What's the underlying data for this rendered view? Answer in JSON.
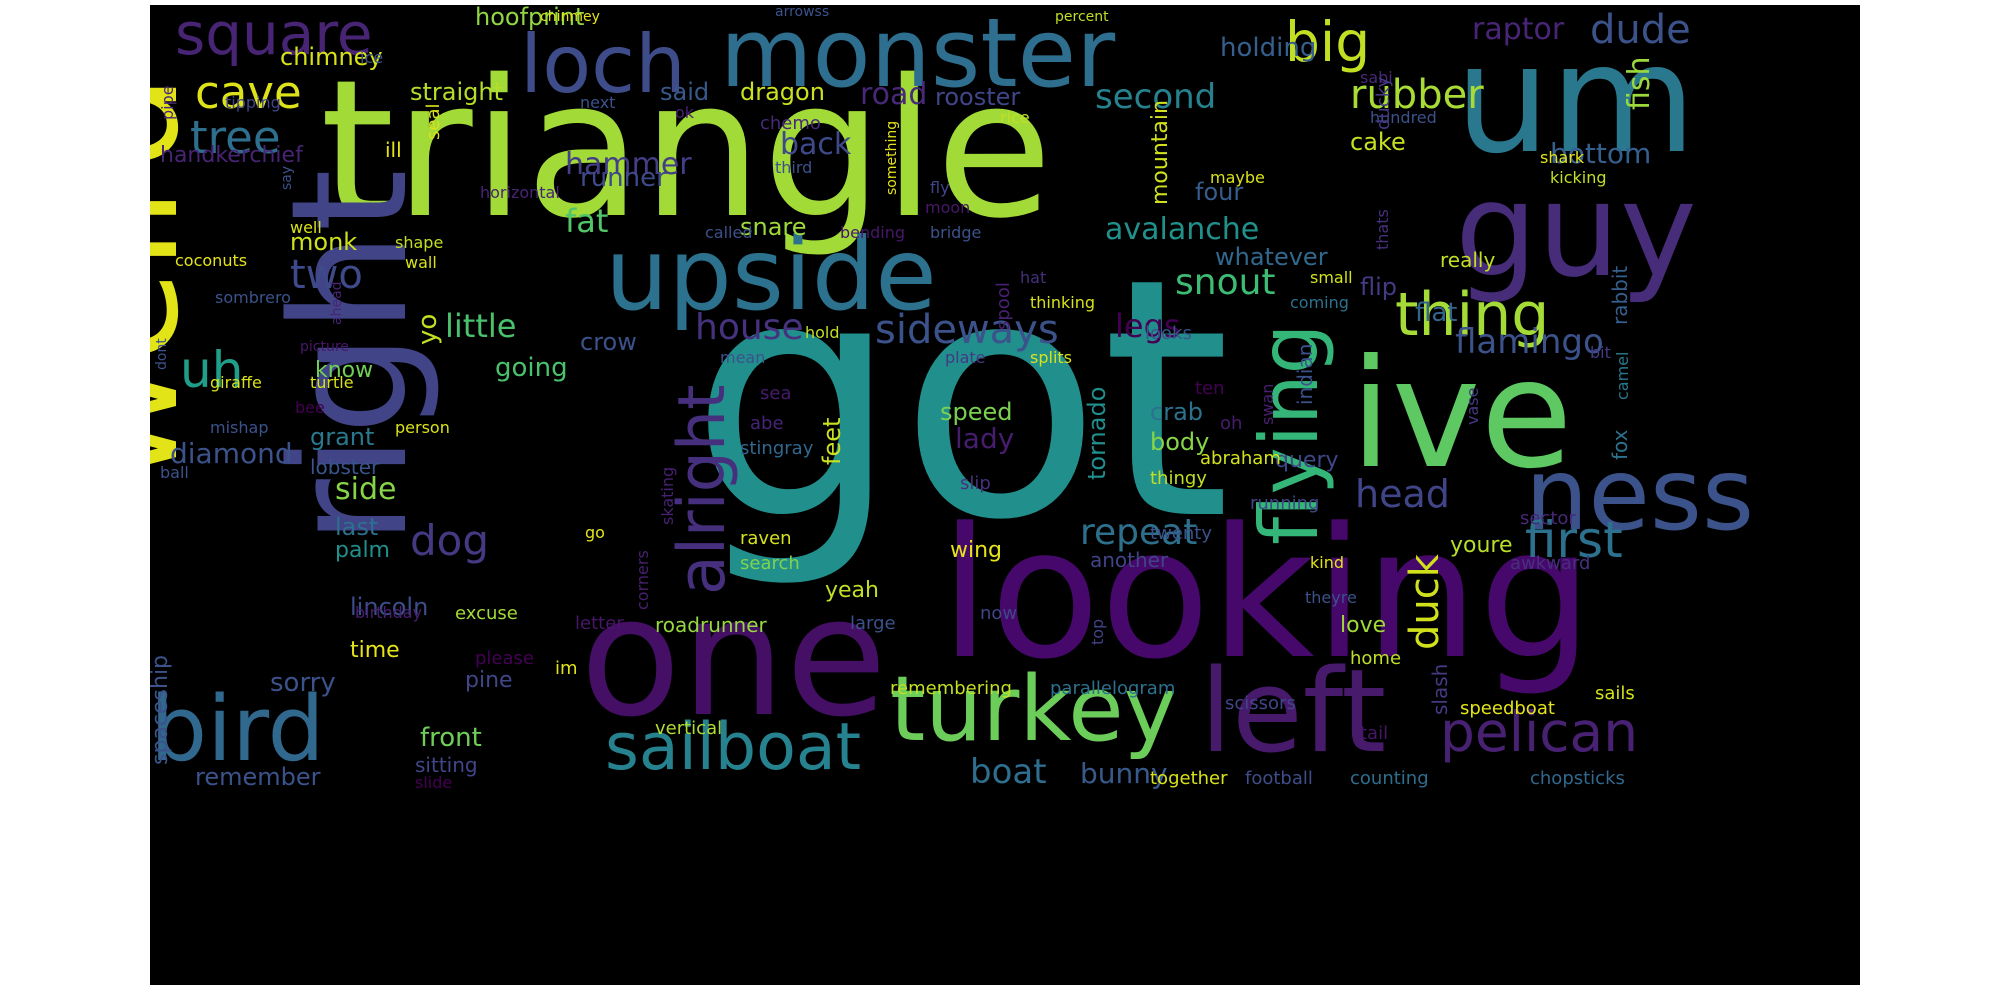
{
  "word_cloud": {
    "background": "#000000",
    "palette": "viridis",
    "words": [
      {
        "text": "got",
        "color": "#21908d"
      },
      {
        "text": "triangle",
        "color": "#a2da37"
      },
      {
        "text": "looking",
        "color": "#46086b"
      },
      {
        "text": "weird",
        "color": "#e2e418"
      },
      {
        "text": "one",
        "color": "#440f65"
      },
      {
        "text": "right",
        "color": "#414487"
      },
      {
        "text": "um",
        "color": "#2a788e"
      },
      {
        "text": "ive",
        "color": "#5ec962"
      },
      {
        "text": "guy",
        "color": "#472c7a"
      },
      {
        "text": "monster",
        "color": "#2e6e8e"
      },
      {
        "text": "upside",
        "color": "#2c728e"
      },
      {
        "text": "ness",
        "color": "#3b528b"
      },
      {
        "text": "left",
        "color": "#481a6c"
      },
      {
        "text": "flying",
        "color": "#34b679"
      },
      {
        "text": "loch",
        "color": "#3e4c8a"
      },
      {
        "text": "turkey",
        "color": "#6ccd5a"
      },
      {
        "text": "bird",
        "color": "#31688e"
      },
      {
        "text": "alright",
        "color": "#46307e"
      },
      {
        "text": "sailboat",
        "color": "#26828e"
      },
      {
        "text": "thing",
        "color": "#a5db36"
      },
      {
        "text": "pelican",
        "color": "#482173"
      },
      {
        "text": "square",
        "color": "#482475"
      },
      {
        "text": "big",
        "color": "#c2df23"
      },
      {
        "text": "cave",
        "color": "#dde318"
      },
      {
        "text": "first",
        "color": "#2c728e"
      },
      {
        "text": "uh",
        "color": "#1f9e89"
      },
      {
        "text": "tree",
        "color": "#2e6f8e"
      },
      {
        "text": "sideways",
        "color": "#3b528b"
      },
      {
        "text": "dog",
        "color": "#443a83"
      },
      {
        "text": "duck",
        "color": "#d0e11c"
      },
      {
        "text": "two",
        "color": "#3e4a89"
      },
      {
        "text": "house",
        "color": "#46327e"
      },
      {
        "text": "rubber",
        "color": "#a8db34"
      },
      {
        "text": "dude",
        "color": "#3b528b"
      },
      {
        "text": "repeat",
        "color": "#2d708e"
      },
      {
        "text": "snout",
        "color": "#3dbc74"
      },
      {
        "text": "head",
        "color": "#404588"
      },
      {
        "text": "bottom",
        "color": "#355f8d"
      },
      {
        "text": "boat",
        "color": "#2e6e8e"
      },
      {
        "text": "little",
        "color": "#4ac16d"
      },
      {
        "text": "flamingo",
        "color": "#3b528b"
      },
      {
        "text": "second",
        "color": "#26828e"
      },
      {
        "text": "hammer",
        "color": "#433e85"
      },
      {
        "text": "fat",
        "color": "#52c569"
      },
      {
        "text": "legs",
        "color": "#440154"
      },
      {
        "text": "back",
        "color": "#3e4989"
      },
      {
        "text": "avalanche",
        "color": "#21918c"
      },
      {
        "text": "diamond",
        "color": "#3b528b"
      },
      {
        "text": "lady",
        "color": "#481c6e"
      },
      {
        "text": "road",
        "color": "#482878"
      },
      {
        "text": "bunny",
        "color": "#38598c"
      },
      {
        "text": "side",
        "color": "#86d549"
      },
      {
        "text": "cake",
        "color": "#c5e021"
      },
      {
        "text": "hoofprint",
        "color": "#90d743"
      },
      {
        "text": "chimney",
        "color": "#d8e219"
      },
      {
        "text": "holding",
        "color": "#355f8d"
      },
      {
        "text": "raptor",
        "color": "#482576"
      },
      {
        "text": "fish",
        "color": "#9bd93c"
      },
      {
        "text": "straight",
        "color": "#b5de2b"
      },
      {
        "text": "said",
        "color": "#38598c"
      },
      {
        "text": "dragon",
        "color": "#cae11f"
      },
      {
        "text": "rooster",
        "color": "#404688"
      },
      {
        "text": "handkerchief",
        "color": "#482475"
      },
      {
        "text": "chemo",
        "color": "#482979"
      },
      {
        "text": "runner",
        "color": "#3e4a89"
      },
      {
        "text": "monk",
        "color": "#cde11d"
      },
      {
        "text": "snare",
        "color": "#9dd93b"
      },
      {
        "text": "whatever",
        "color": "#31688e"
      },
      {
        "text": "four",
        "color": "#365d8d"
      },
      {
        "text": "flip",
        "color": "#443b84"
      },
      {
        "text": "flat",
        "color": "#32658e"
      },
      {
        "text": "mountain",
        "color": "#d0e11c"
      },
      {
        "text": "crow",
        "color": "#3b528b"
      },
      {
        "text": "going",
        "color": "#4ac16d"
      },
      {
        "text": "know",
        "color": "#70cf57"
      },
      {
        "text": "grant",
        "color": "#2a788e"
      },
      {
        "text": "speed",
        "color": "#7ad151"
      },
      {
        "text": "tornado",
        "color": "#218f8d"
      },
      {
        "text": "crab",
        "color": "#2c728e"
      },
      {
        "text": "body",
        "color": "#86d549"
      },
      {
        "text": "query",
        "color": "#3f4788"
      },
      {
        "text": "feet",
        "color": "#c8e020"
      },
      {
        "text": "lobster",
        "color": "#39568c"
      },
      {
        "text": "last",
        "color": "#2d708e"
      },
      {
        "text": "palm",
        "color": "#21908d"
      },
      {
        "text": "wing",
        "color": "#e5e419"
      },
      {
        "text": "another",
        "color": "#414487"
      },
      {
        "text": "youre",
        "color": "#b8de29"
      },
      {
        "text": "yeah",
        "color": "#c0df25"
      },
      {
        "text": "roadrunner",
        "color": "#95d840"
      },
      {
        "text": "love",
        "color": "#a0da39"
      },
      {
        "text": "lincoln",
        "color": "#3d4d8a"
      },
      {
        "text": "time",
        "color": "#e7e419"
      },
      {
        "text": "sorry",
        "color": "#3b528b"
      },
      {
        "text": "pine",
        "color": "#404688"
      },
      {
        "text": "front",
        "color": "#6ece58"
      },
      {
        "text": "remember",
        "color": "#3b528b"
      },
      {
        "text": "spaceship",
        "color": "#3b528b"
      },
      {
        "text": "excuse",
        "color": "#a2da37"
      },
      {
        "text": "birthday",
        "color": "#482071"
      },
      {
        "text": "letter",
        "color": "#481769"
      },
      {
        "text": "large",
        "color": "#3b528b"
      },
      {
        "text": "now",
        "color": "#404688"
      },
      {
        "text": "please",
        "color": "#440154"
      },
      {
        "text": "im",
        "color": "#e1e318"
      },
      {
        "text": "remembering",
        "color": "#c2df23"
      },
      {
        "text": "parallelogram",
        "color": "#2c728e"
      },
      {
        "text": "scissors",
        "color": "#404688"
      },
      {
        "text": "slash",
        "color": "#443983"
      },
      {
        "text": "home",
        "color": "#c0df25"
      },
      {
        "text": "speedboat",
        "color": "#e4e419"
      },
      {
        "text": "sails",
        "color": "#d2e21b"
      },
      {
        "text": "vertical",
        "color": "#b0dd2f"
      },
      {
        "text": "tail",
        "color": "#481769"
      },
      {
        "text": "together",
        "color": "#d8e219"
      },
      {
        "text": "football",
        "color": "#3d4e8a"
      },
      {
        "text": "counting",
        "color": "#2e6e8e"
      },
      {
        "text": "chopsticks",
        "color": "#31688e"
      },
      {
        "text": "sitting",
        "color": "#404688"
      },
      {
        "text": "slide",
        "color": "#440154"
      },
      {
        "text": "top",
        "color": "#414487"
      },
      {
        "text": "theyre",
        "color": "#3b528b"
      },
      {
        "text": "kind",
        "color": "#e1e318"
      },
      {
        "text": "awkward",
        "color": "#46307e"
      },
      {
        "text": "sector",
        "color": "#482878"
      },
      {
        "text": "twenty",
        "color": "#3b528b"
      },
      {
        "text": "running",
        "color": "#404688"
      },
      {
        "text": "raven",
        "color": "#d5e21a"
      },
      {
        "text": "search",
        "color": "#7fd34e"
      },
      {
        "text": "corners",
        "color": "#482071"
      },
      {
        "text": "skating",
        "color": "#482173"
      },
      {
        "text": "go",
        "color": "#e5e419"
      },
      {
        "text": "stingray",
        "color": "#31688e"
      },
      {
        "text": "slip",
        "color": "#46307e"
      },
      {
        "text": "abe",
        "color": "#482475"
      },
      {
        "text": "sea",
        "color": "#481a6c"
      },
      {
        "text": "abraham",
        "color": "#d2e21b"
      },
      {
        "text": "thingy",
        "color": "#c2df23"
      },
      {
        "text": "oh",
        "color": "#481c6e"
      },
      {
        "text": "ten",
        "color": "#440154"
      },
      {
        "text": "swan",
        "color": "#482071"
      },
      {
        "text": "indian",
        "color": "#3b528b"
      },
      {
        "text": "vase",
        "color": "#443983"
      },
      {
        "text": "fox",
        "color": "#2c728e"
      },
      {
        "text": "camel",
        "color": "#2a788e"
      },
      {
        "text": "bit",
        "color": "#443a83"
      },
      {
        "text": "rabbit",
        "color": "#355f8d"
      },
      {
        "text": "really",
        "color": "#c2df23"
      },
      {
        "text": "thats",
        "color": "#46307e"
      },
      {
        "text": "small",
        "color": "#d2e21b"
      },
      {
        "text": "coming",
        "color": "#2c728e"
      },
      {
        "text": "thinking",
        "color": "#d8e219"
      },
      {
        "text": "looks",
        "color": "#3b528b"
      },
      {
        "text": "splits",
        "color": "#d8e219"
      },
      {
        "text": "plate",
        "color": "#443983"
      },
      {
        "text": "hold",
        "color": "#c2df23"
      },
      {
        "text": "mean",
        "color": "#3b528b"
      },
      {
        "text": "hat",
        "color": "#46307e"
      },
      {
        "text": "spool",
        "color": "#482071"
      },
      {
        "text": "bridge",
        "color": "#3b528b"
      },
      {
        "text": "bending",
        "color": "#481769"
      },
      {
        "text": "wall",
        "color": "#d8e219"
      },
      {
        "text": "shape",
        "color": "#c2df23"
      },
      {
        "text": "well",
        "color": "#d8e219"
      },
      {
        "text": "called",
        "color": "#3b528b"
      },
      {
        "text": "moon",
        "color": "#481769"
      },
      {
        "text": "fly",
        "color": "#404688"
      },
      {
        "text": "something",
        "color": "#e5e419"
      },
      {
        "text": "kicking",
        "color": "#c2df23"
      },
      {
        "text": "maybe",
        "color": "#d8e219"
      },
      {
        "text": "shark",
        "color": "#e5e419"
      },
      {
        "text": "hundred",
        "color": "#3b528b"
      },
      {
        "text": "sabi",
        "color": "#482878"
      },
      {
        "text": "ducky",
        "color": "#443983"
      },
      {
        "text": "rice",
        "color": "#c2df23"
      },
      {
        "text": "ok",
        "color": "#482071"
      },
      {
        "text": "next",
        "color": "#3b528b"
      },
      {
        "text": "third",
        "color": "#3b528b"
      },
      {
        "text": "ill",
        "color": "#e5e419"
      },
      {
        "text": "seal",
        "color": "#d8e219"
      },
      {
        "text": "horizontal",
        "color": "#482475"
      },
      {
        "text": "say",
        "color": "#3b528b"
      },
      {
        "text": "tipping",
        "color": "#404688"
      },
      {
        "text": "pipe",
        "color": "#482878"
      },
      {
        "text": "ice",
        "color": "#3b528b"
      },
      {
        "text": "arrowss",
        "color": "#3b528b"
      },
      {
        "text": "chinmey",
        "color": "#e5e419"
      },
      {
        "text": "percent",
        "color": "#c2df23"
      },
      {
        "text": "coconuts",
        "color": "#e5e419"
      },
      {
        "text": "sombrero",
        "color": "#3b528b"
      },
      {
        "text": "ahead",
        "color": "#482475"
      },
      {
        "text": "picture",
        "color": "#481769"
      },
      {
        "text": "dont",
        "color": "#3b528b"
      },
      {
        "text": "giraffe",
        "color": "#d8e219"
      },
      {
        "text": "turtle",
        "color": "#d8e219"
      },
      {
        "text": "bee",
        "color": "#440154"
      },
      {
        "text": "mishap",
        "color": "#3b528b"
      },
      {
        "text": "person",
        "color": "#d8e219"
      },
      {
        "text": "ball",
        "color": "#3b528b"
      },
      {
        "text": "yo",
        "color": "#c2df23"
      }
    ]
  }
}
